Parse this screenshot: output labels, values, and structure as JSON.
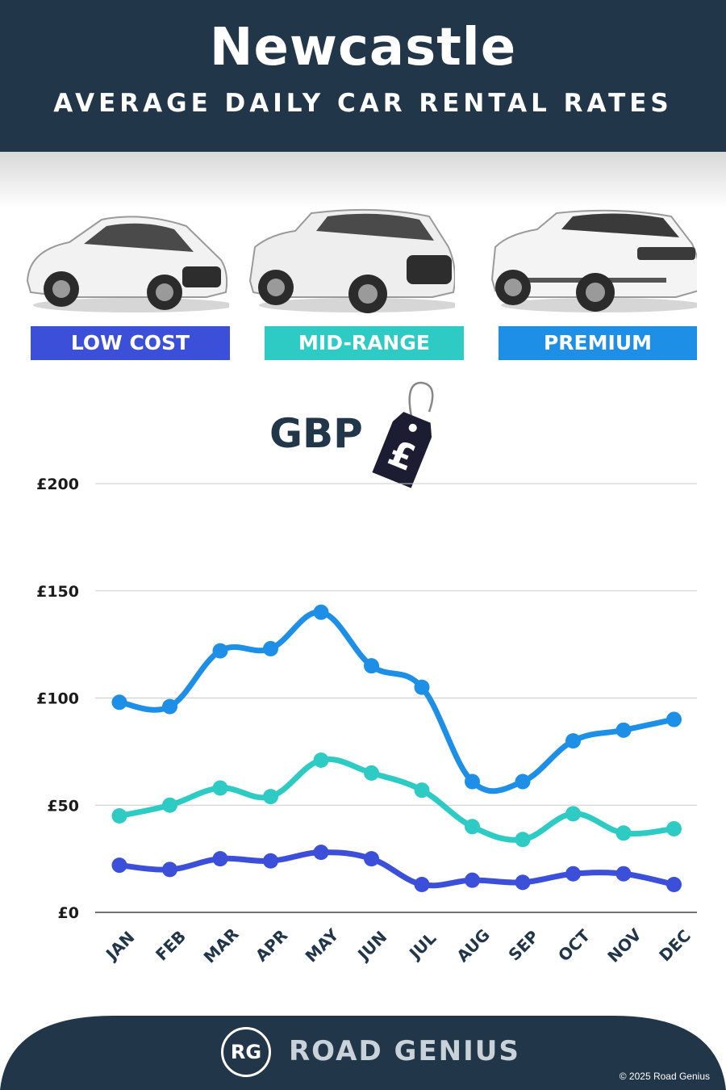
{
  "header": {
    "title": "Newcastle",
    "subtitle": "AVERAGE DAILY CAR RENTAL RATES"
  },
  "categories": [
    {
      "label": "LOW COST",
      "color": "#3b4fd8",
      "car_icon": "hatchback-car-icon"
    },
    {
      "label": "MID-RANGE",
      "color": "#2ecbc4",
      "car_icon": "suv-car-icon"
    },
    {
      "label": "PREMIUM",
      "color": "#1d8fe6",
      "car_icon": "luxury-suv-car-icon"
    }
  ],
  "currency": {
    "label": "GBP",
    "symbol": "£"
  },
  "chart_data": {
    "type": "line",
    "categories": [
      "JAN",
      "FEB",
      "MAR",
      "APR",
      "MAY",
      "JUN",
      "JUL",
      "AUG",
      "SEP",
      "OCT",
      "NOV",
      "DEC"
    ],
    "y_ticks": [
      "£200",
      "£150",
      "£100",
      "£50",
      "£0"
    ],
    "ylim": [
      0,
      200
    ],
    "grid": true,
    "series": [
      {
        "name": "PREMIUM",
        "color": "#1d8fe6",
        "values": [
          98,
          96,
          122,
          123,
          140,
          115,
          105,
          61,
          61,
          80,
          85,
          90
        ]
      },
      {
        "name": "MID-RANGE",
        "color": "#2ecbc4",
        "values": [
          45,
          50,
          58,
          54,
          71,
          65,
          57,
          40,
          34,
          46,
          37,
          39
        ]
      },
      {
        "name": "LOW COST",
        "color": "#3b4fd8",
        "values": [
          22,
          20,
          25,
          24,
          28,
          25,
          13,
          15,
          14,
          18,
          18,
          13
        ]
      }
    ]
  },
  "footer": {
    "logo_initials": "RG",
    "brand": "ROAD GENIUS",
    "copyright": "© 2025 Road Genius"
  }
}
